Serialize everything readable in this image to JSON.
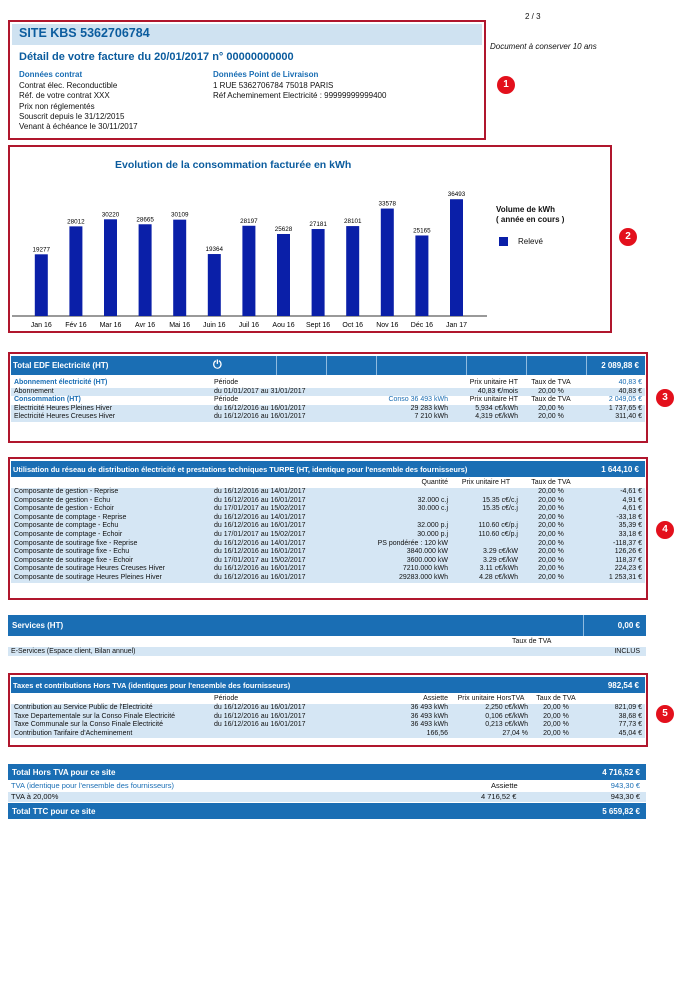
{
  "page_number": "2 / 3",
  "conserve_note": "Document à conserver 10 ans",
  "badges": [
    "1",
    "2",
    "3",
    "4",
    "5"
  ],
  "site": {
    "title": "SITE KBS 5362706784",
    "subtitle": "Détail de votre facture du 20/01/2017 n° 00000000000"
  },
  "contrat": {
    "heading": "Données contrat",
    "lines": [
      "Contrat élec. Reconductible",
      "Réf. de votre contrat XXX",
      "Prix non réglementés",
      "Souscrit depuis le 31/12/2015",
      "Venant à échéance le 30/11/2017"
    ]
  },
  "livraison": {
    "heading": "Données Point de Livraison",
    "lines": [
      "1 RUE 5362706784 75018 PARIS",
      "Réf Acheminement Electricité : 99999999999400"
    ]
  },
  "chart_data": {
    "type": "bar",
    "title": "Evolution de la consommation facturée en kWh",
    "categories": [
      "Jan 16",
      "Fév 16",
      "Mar 16",
      "Avr 16",
      "Mai 16",
      "Juin 16",
      "Juil 16",
      "Aou 16",
      "Sept 16",
      "Oct 16",
      "Nov 16",
      "Déc 16",
      "Jan 17"
    ],
    "series": [
      {
        "name": "Relevé",
        "values": [
          19277,
          28012,
          30220,
          28665,
          30109,
          19364,
          28197,
          25628,
          27181,
          28101,
          33578,
          25165,
          36493
        ]
      }
    ],
    "legend_title": "Volume de kWh\n( année en cours )",
    "color": "#0a1fa8",
    "ylim": [
      0,
      40000
    ],
    "legend_position": "right"
  },
  "edf": {
    "title": "Total EDF Electricité (HT)",
    "total": "2 089,88 €",
    "icon": "plug-icon",
    "abo_label": "Abonnement électricité (HT)",
    "periode_label": "Période",
    "pu_label": "Prix unitaire HT",
    "tva_label": "Taux de TVA",
    "abo_total": "40,83 €",
    "abo_row": [
      "Abonnement",
      "du 01/01/2017 au 31/01/2017",
      "",
      "40,83 €/mois",
      "20,00 %",
      "40,83 €"
    ],
    "conso_label": "Consommation (HT)",
    "conso_value": "Conso 36 493 kWh",
    "conso_total": "2 049,05 €",
    "rows": [
      [
        "Electricité Heures Pleines Hiver",
        "du 16/12/2016 au 16/01/2017",
        "29 283 kWh",
        "5,934 c€/kWh",
        "20,00 %",
        "1 737,65 €"
      ],
      [
        "Electricité Heures Creuses Hiver",
        "du 16/12/2016 au 16/01/2017",
        "7 210 kWh",
        "4,319 c€/kWh",
        "20,00 %",
        "311,40 €"
      ]
    ]
  },
  "turpe": {
    "title": "Utilisation du réseau de distribution électricité et prestations techniques TURPE (HT, identique pour l'ensemble des fournisseurs)",
    "total": "1 644,10 €",
    "headers": [
      "Quantité",
      "Prix unitaire HT",
      "Taux de TVA"
    ],
    "rows": [
      [
        "Composante de gestion - Reprise",
        "du 16/12/2016 au 14/01/2017",
        "",
        "",
        "20,00 %",
        "-4,61 €"
      ],
      [
        "Composante de gestion - Echu",
        "du 16/12/2016 au 16/01/2017",
        "32.000 c.j",
        "15.35 c€/c.j",
        "20,00 %",
        "4,91 €"
      ],
      [
        "Composante de gestion - Echoir",
        "du 17/01/2017 au 15/02/2017",
        "30.000 c.j",
        "15.35 c€/c.j",
        "20,00 %",
        "4,61 €"
      ],
      [
        "Composante de comptage - Reprise",
        "du 16/12/2016 au 14/01/2017",
        "",
        "",
        "20,00 %",
        "-33,18 €"
      ],
      [
        "Composante de comptage - Echu",
        "du 16/12/2016 au 16/01/2017",
        "32.000 p.j",
        "110.60 c€/p.j",
        "20,00 %",
        "35,39 €"
      ],
      [
        "Composante de comptage - Echoir",
        "du 17/01/2017 au 15/02/2017",
        "30.000 p.j",
        "110.60 c€/p.j",
        "20,00 %",
        "33,18 €"
      ],
      [
        "Composante de soutirage fixe - Reprise",
        "du 16/12/2016 au 14/01/2017",
        "PS pondérée : 120 kW",
        "",
        "20,00 %",
        "-118,37 €"
      ],
      [
        "Composante de soutirage fixe - Echu",
        "du 16/12/2016 au 16/01/2017",
        "3840.000 kW",
        "3.29 c€/kW",
        "20,00 %",
        "126,26 €"
      ],
      [
        "Composante de soutirage fixe - Echoir",
        "du 17/01/2017 au 15/02/2017",
        "3600.000 kW",
        "3.29 c€/kW",
        "20,00 %",
        "118,37 €"
      ],
      [
        "Composante de soutirage Heures Creuses Hiver",
        "du 16/12/2016 au 16/01/2017",
        "7210.000 kWh",
        "3.11 c€/kWh",
        "20,00 %",
        "224,23 €"
      ],
      [
        "Composante de soutirage Heures Pleines Hiver",
        "du 16/12/2016 au 16/01/2017",
        "29283.000 kWh",
        "4.28 c€/kWh",
        "20,00 %",
        "1 253,31 €"
      ]
    ]
  },
  "services": {
    "title": "Services (HT)",
    "total": "0,00 €",
    "tva_label": "Taux de TVA",
    "row": [
      "E-Services (Espace client, Bilan annuel)",
      "INCLUS"
    ]
  },
  "taxes": {
    "title": "Taxes et contributions Hors TVA (identiques pour l'ensemble des fournisseurs)",
    "total": "982,54 €",
    "headers": [
      "Période",
      "Assiette",
      "Prix unitaire HorsTVA",
      "Taux de TVA"
    ],
    "rows": [
      [
        "Contribution au Service Public de l'Electricité",
        "du 16/12/2016 au 16/01/2017",
        "36 493 kWh",
        "2,250 c€/kWh",
        "20,00 %",
        "821,09 €"
      ],
      [
        "Taxe Departementale sur la Conso Finale Electricité",
        "du 16/12/2016 au 16/01/2017",
        "36 493 kWh",
        "0,106 c€/kWh",
        "20,00 %",
        "38,68 €"
      ],
      [
        "Taxe Communale sur la Conso Finale Electricité",
        "du 16/12/2016 au 16/01/2017",
        "36 493 kWh",
        "0,213 c€/kWh",
        "20,00 %",
        "77,73 €"
      ],
      [
        "Contribution Tarifaire d'Acheminement",
        "",
        "166,56",
        "27,04 %",
        "20,00 %",
        "45,04 €"
      ]
    ]
  },
  "totals": {
    "hors_tva_label": "Total Hors TVA pour ce site",
    "hors_tva": "4 716,52 €",
    "tva_label": "TVA (identique pour l'ensemble des fournisseurs)",
    "tva_total": "943,30 €",
    "assiette_label": "Assiette",
    "tva_rate_label": "TVA à 20,00%",
    "tva_assiette": "4 716,52 €",
    "tva_rate_value": "943,30 €",
    "ttc_label": "Total TTC pour ce site",
    "ttc": "5 659,82 €"
  }
}
